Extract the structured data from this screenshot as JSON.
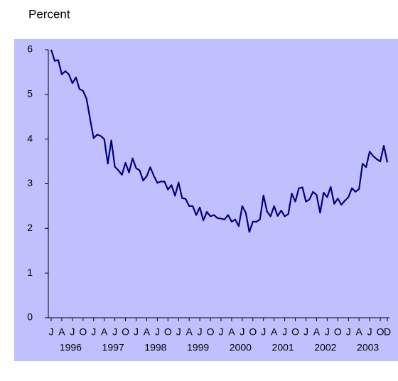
{
  "chart_data": {
    "type": "line",
    "title": "Percent",
    "categories": [
      "J",
      null,
      null,
      "A",
      null,
      null,
      "J",
      null,
      null,
      "O",
      null,
      null,
      "J",
      null,
      null,
      "A",
      null,
      null,
      "J",
      null,
      null,
      "O",
      null,
      null,
      "J",
      null,
      null,
      "A",
      null,
      null,
      "J",
      null,
      null,
      "O",
      null,
      null,
      "J",
      null,
      null,
      "A",
      null,
      null,
      "J",
      null,
      null,
      "O",
      null,
      null,
      "J",
      null,
      null,
      "A",
      null,
      null,
      "J",
      null,
      null,
      "O",
      null,
      null,
      "J",
      null,
      null,
      "A",
      null,
      null,
      "J",
      null,
      null,
      "O",
      null,
      null,
      "J",
      null,
      null,
      "A",
      null,
      null,
      "J",
      null,
      null,
      "O",
      null,
      null,
      "J",
      null,
      null,
      "A",
      null,
      null,
      "J",
      null,
      null,
      "O",
      null,
      "D"
    ],
    "groups": [
      "1996",
      "1997",
      "1998",
      "1999",
      "2000",
      "2001",
      "2002",
      "2003"
    ],
    "series": [
      {
        "color": "#000080",
        "values": [
          6.0,
          5.75,
          5.77,
          5.45,
          5.52,
          5.45,
          5.25,
          5.38,
          5.12,
          5.08,
          4.9,
          4.45,
          4.02,
          4.1,
          4.07,
          4.0,
          3.45,
          3.97,
          3.38,
          3.3,
          3.2,
          3.47,
          3.25,
          3.57,
          3.35,
          3.3,
          3.07,
          3.17,
          3.37,
          3.18,
          3.02,
          3.05,
          3.05,
          2.87,
          2.97,
          2.73,
          3.03,
          2.68,
          2.66,
          2.5,
          2.5,
          2.3,
          2.47,
          2.18,
          2.37,
          2.27,
          2.3,
          2.23,
          2.22,
          2.2,
          2.3,
          2.15,
          2.2,
          2.05,
          2.5,
          2.35,
          1.92,
          2.15,
          2.15,
          2.2,
          2.74,
          2.38,
          2.27,
          2.5,
          2.28,
          2.4,
          2.27,
          2.32,
          2.78,
          2.6,
          2.9,
          2.92,
          2.6,
          2.65,
          2.82,
          2.75,
          2.35,
          2.8,
          2.7,
          2.93,
          2.55,
          2.67,
          2.53,
          2.62,
          2.7,
          2.9,
          2.82,
          2.88,
          3.45,
          3.37,
          3.72,
          3.62,
          3.55,
          3.5,
          3.85,
          3.48
        ]
      }
    ],
    "ylim": [
      0,
      6
    ],
    "yticks": [
      0,
      1,
      2,
      3,
      4,
      5,
      6
    ],
    "background": "#c0c0ff"
  }
}
